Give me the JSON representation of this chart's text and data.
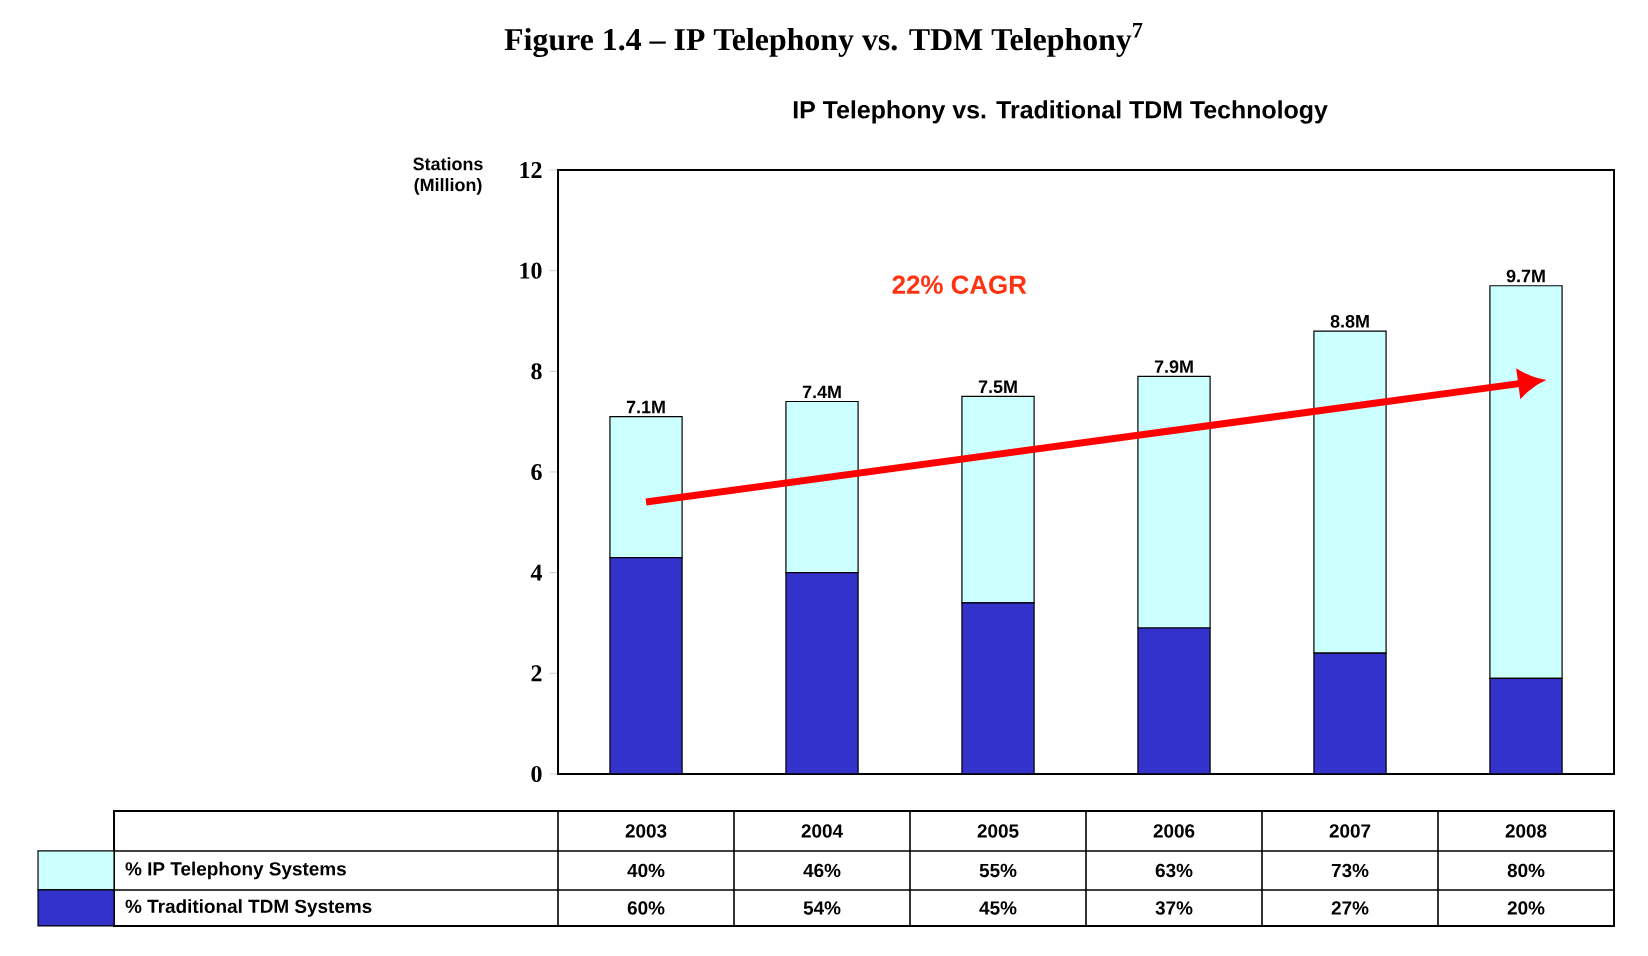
{
  "chart_data": {
    "type": "bar",
    "stacked": true,
    "title": "Figure 1.4 – IP Telephony vs. TDM Telephony$^{7}$",
    "subtitle": "IP Telephony vs. Traditional TDM Technology",
    "ylabel": "Stations (Million)",
    "categories": [
      "2003",
      "2004",
      "2005",
      "2006",
      "2007",
      "2008"
    ],
    "ylim": [
      0,
      12
    ],
    "yticks": [
      0,
      2,
      4,
      6,
      8,
      10,
      12
    ],
    "series": [
      {
        "name": "% Traditional TDM Systems",
        "color": "#3333cc",
        "values": [
          4.3,
          4.0,
          3.4,
          2.9,
          2.4,
          1.9
        ]
      },
      {
        "name": "% IP Telephony Systems",
        "color": "#ccffff",
        "values": [
          2.8,
          3.4,
          4.1,
          5.0,
          6.4,
          7.8
        ]
      }
    ],
    "totals": [
      "7.1M",
      "7.4M",
      "7.5M",
      "7.9M",
      "8.8M",
      "9.7M"
    ],
    "annotations": [
      "22% CAGR",
      "40%",
      "46%",
      "55%",
      "63%",
      "73%",
      "80%",
      "60%",
      "54%",
      "45%",
      "37%",
      "27%",
      "20%"
    ],
    "legend": "bottom"
  }
}
